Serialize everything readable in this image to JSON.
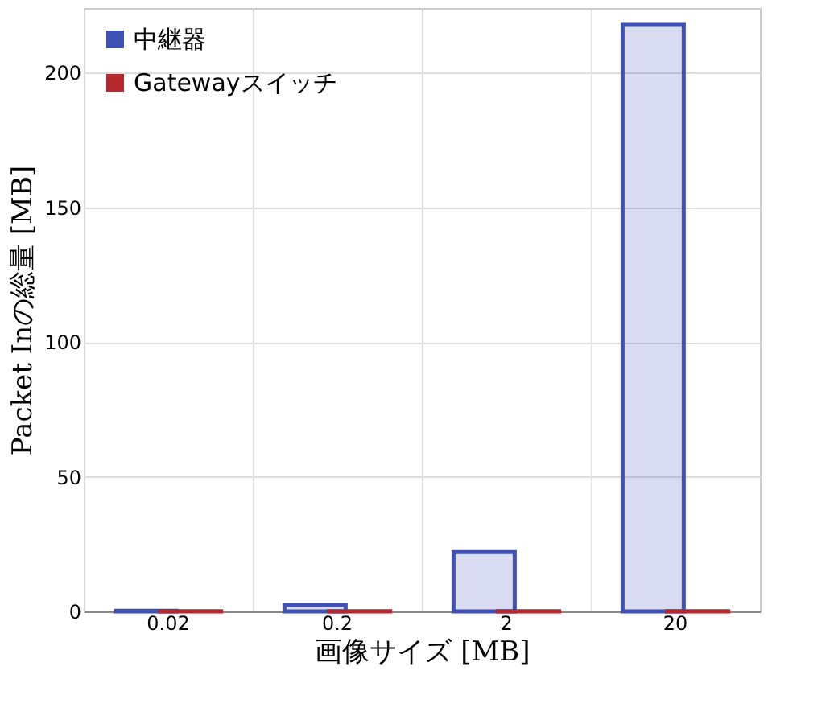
{
  "chart_data": {
    "type": "bar",
    "xlabel": "画像サイズ [MB]",
    "ylabel": "Packet Inの総量 [MB]",
    "categories": [
      "0.02",
      "0.2",
      "2",
      "20"
    ],
    "series": [
      {
        "name": "中継器",
        "color": "#3f51b5",
        "values": [
          0.2,
          2.4,
          22,
          218
        ]
      },
      {
        "name": "Gatewayスイッチ",
        "color": "#b5282e",
        "values": [
          0.1,
          0.1,
          0.1,
          0.1
        ]
      }
    ],
    "ylim": [
      0,
      224
    ],
    "yticks": [
      0,
      50,
      100,
      150,
      200
    ],
    "grid": true,
    "legend": "top left"
  }
}
